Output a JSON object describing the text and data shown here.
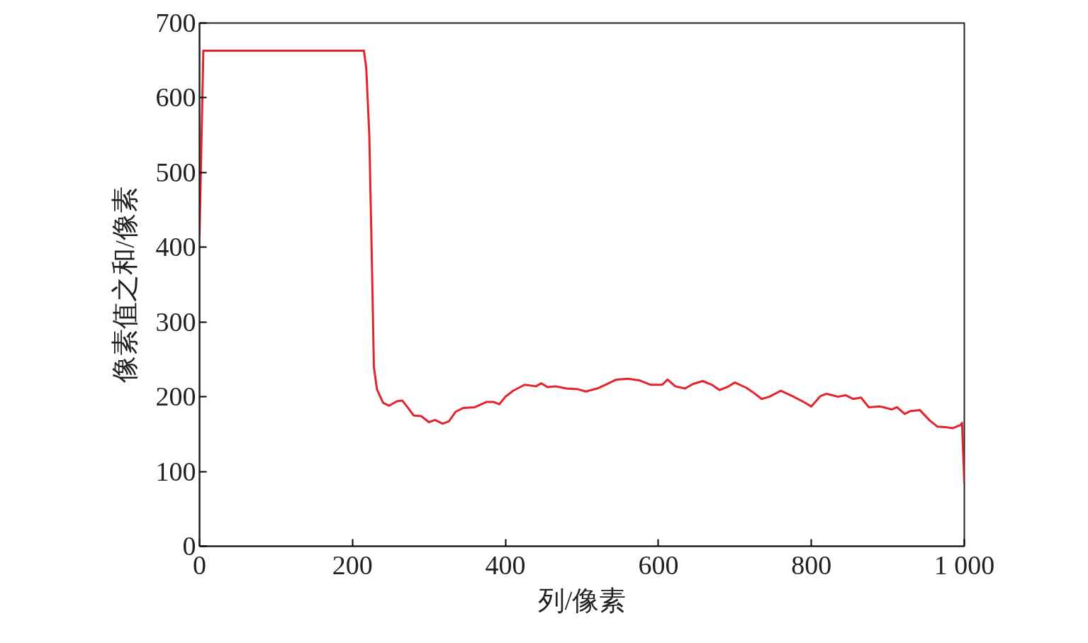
{
  "chart_data": {
    "type": "line",
    "xlabel": "列/像素",
    "ylabel": "像素值之和/像素",
    "xlim": [
      0,
      1000
    ],
    "ylim": [
      0,
      700
    ],
    "xticks": [
      0,
      200,
      400,
      600,
      800,
      {
        "value": 1000,
        "label": "1 000"
      }
    ],
    "yticks": [
      0,
      100,
      200,
      300,
      400,
      500,
      600,
      700
    ],
    "grid": false,
    "series": [
      {
        "color": "#e3242b",
        "x": [
          0,
          5,
          215,
          218,
          222,
          225,
          228,
          232,
          240,
          248,
          258,
          265,
          272,
          280,
          290,
          300,
          308,
          318,
          326,
          335,
          345,
          360,
          375,
          385,
          392,
          400,
          410,
          425,
          440,
          447,
          455,
          465,
          480,
          495,
          505,
          520,
          535,
          545,
          560,
          575,
          590,
          605,
          612,
          622,
          635,
          645,
          658,
          670,
          680,
          690,
          700,
          715,
          725,
          735,
          745,
          760,
          775,
          790,
          800,
          812,
          820,
          835,
          845,
          855,
          865,
          875,
          890,
          905,
          912,
          922,
          930,
          942,
          955,
          965,
          978,
          985,
          995,
          997,
          1000
        ],
        "values": [
          415,
          663,
          663,
          640,
          550,
          400,
          240,
          210,
          192,
          188,
          194,
          195,
          186,
          175,
          174,
          166,
          169,
          164,
          167,
          180,
          185,
          186,
          193,
          193,
          190,
          200,
          208,
          216,
          214,
          218,
          213,
          214,
          211,
          210,
          207,
          211,
          218,
          223,
          224,
          222,
          216,
          216,
          223,
          214,
          211,
          217,
          221,
          216,
          209,
          213,
          219,
          212,
          205,
          197,
          200,
          208,
          201,
          193,
          187,
          201,
          204,
          200,
          202,
          197,
          199,
          186,
          187,
          183,
          186,
          177,
          181,
          182,
          168,
          160,
          159,
          158,
          162,
          165,
          85
        ]
      }
    ]
  }
}
